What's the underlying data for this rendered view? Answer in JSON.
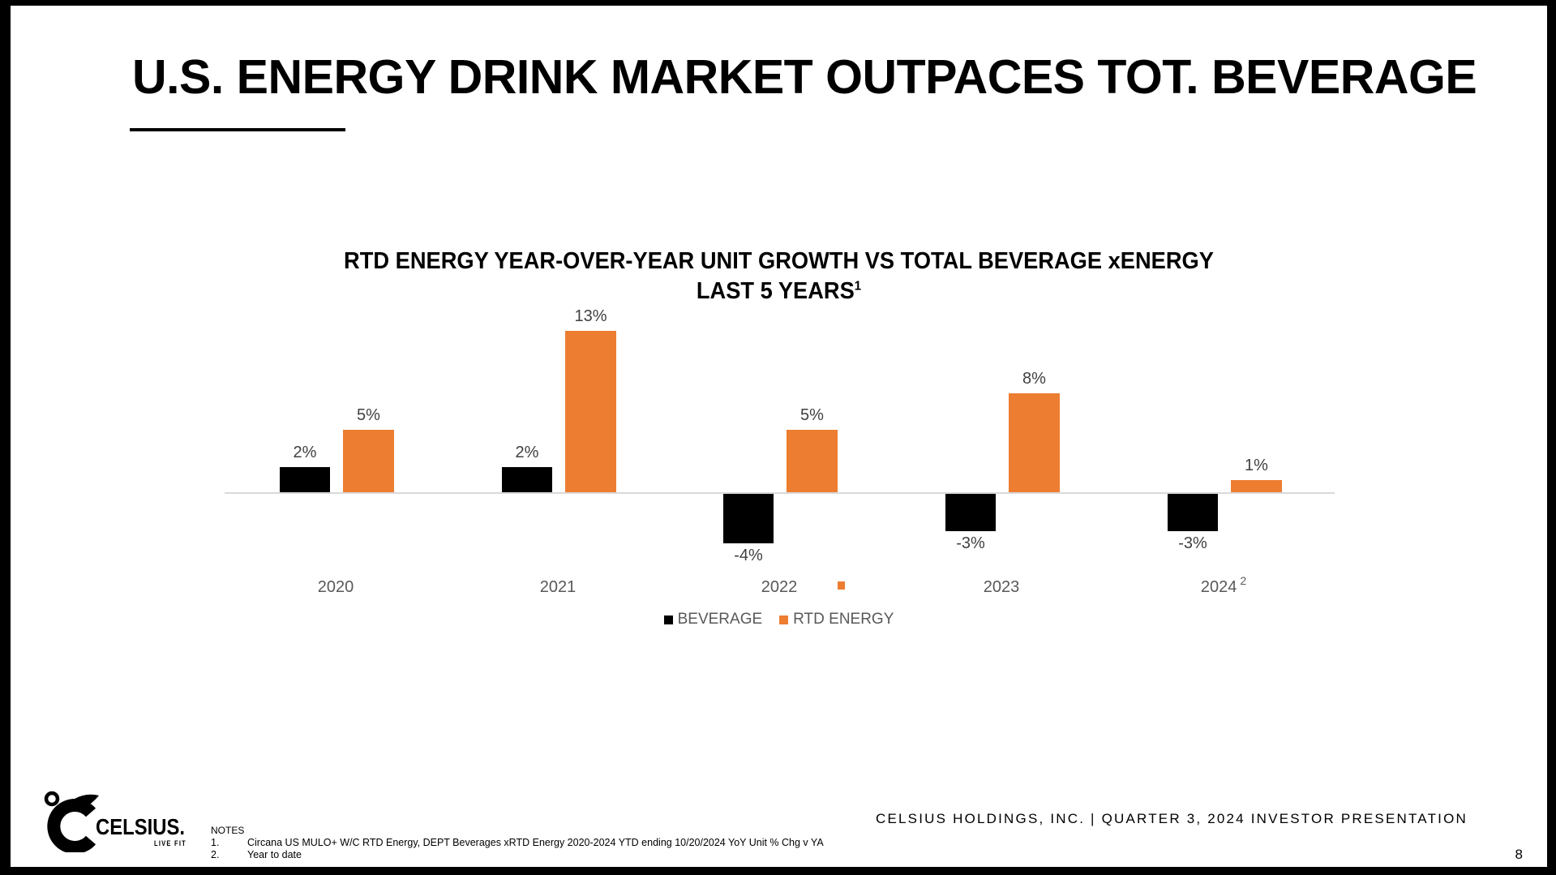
{
  "slide": {
    "title": "U.S. ENERGY DRINK MARKET OUTPACES TOT. BEVERAGE",
    "footer_text": "CELSIUS HOLDINGS, INC. | QUARTER 3, 2024 INVESTOR PRESENTATION",
    "page_number": "8",
    "logo": {
      "brand": "CELSIUS.",
      "tagline": "LIVE FIT"
    },
    "notes": {
      "heading": "NOTES",
      "items": [
        {
          "num": "1.",
          "text": "Circana US MULO+ W/C RTD Energy, DEPT Beverages xRTD Energy 2020-2024 YTD ending 10/20/2024 YoY Unit % Chg v YA"
        },
        {
          "num": "2.",
          "text": "Year to date"
        }
      ]
    }
  },
  "chart_data": {
    "type": "bar",
    "title_line1": "RTD ENERGY YEAR-OVER-YEAR UNIT GROWTH VS TOTAL BEVERAGE xENERGY",
    "title_line2": "LAST 5 YEARS",
    "title_footnote_superscript": "1",
    "categories": [
      "2020",
      "2021",
      "2022",
      "2023",
      "2024"
    ],
    "category_superscripts": [
      "",
      "",
      "",
      "",
      "2"
    ],
    "unit": "percent YoY unit growth",
    "series": [
      {
        "name": "BEVERAGE",
        "color": "#000000",
        "values": [
          2,
          2,
          -4,
          -3,
          -3
        ],
        "labels": [
          "2%",
          "2%",
          "-4%",
          "-3%",
          "-3%"
        ]
      },
      {
        "name": "RTD ENERGY",
        "color": "#ED7D31",
        "values": [
          5,
          13,
          5,
          8,
          1
        ],
        "labels": [
          "5%",
          "13%",
          "5%",
          "8%",
          "1%"
        ]
      }
    ],
    "ylim": [
      -5,
      14
    ],
    "grid": false,
    "legend_position": "bottom-center",
    "axis_line_color": "#D9D9D9"
  },
  "colors": {
    "accent_orange": "#ED7D31",
    "bar_black": "#000000",
    "bar_label_gray": "#404040",
    "axis_label_gray": "#595959",
    "frame_black": "#000000"
  }
}
